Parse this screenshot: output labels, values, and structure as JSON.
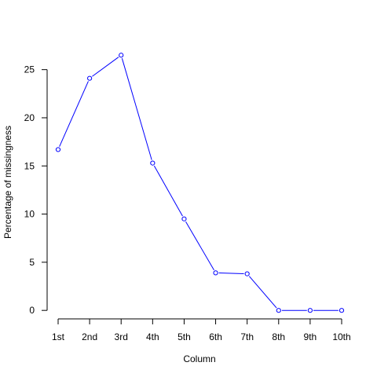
{
  "chart_data": {
    "type": "line",
    "title": "",
    "xlabel": "Column",
    "ylabel": "Percentage of missingness",
    "categories": [
      "1st",
      "2nd",
      "3rd",
      "4th",
      "5th",
      "6th",
      "7th",
      "8th",
      "9th",
      "10th"
    ],
    "series": [
      {
        "values": [
          16.7,
          24.1,
          26.5,
          15.3,
          9.5,
          3.9,
          3.8,
          0.0,
          0.0,
          0.0
        ],
        "color": "#0000ff",
        "marker": "open-circle"
      }
    ],
    "yticks": [
      0,
      5,
      10,
      15,
      20,
      25
    ],
    "ylim": [
      -0.8,
      27.5
    ],
    "grid": false,
    "legend": "none"
  }
}
